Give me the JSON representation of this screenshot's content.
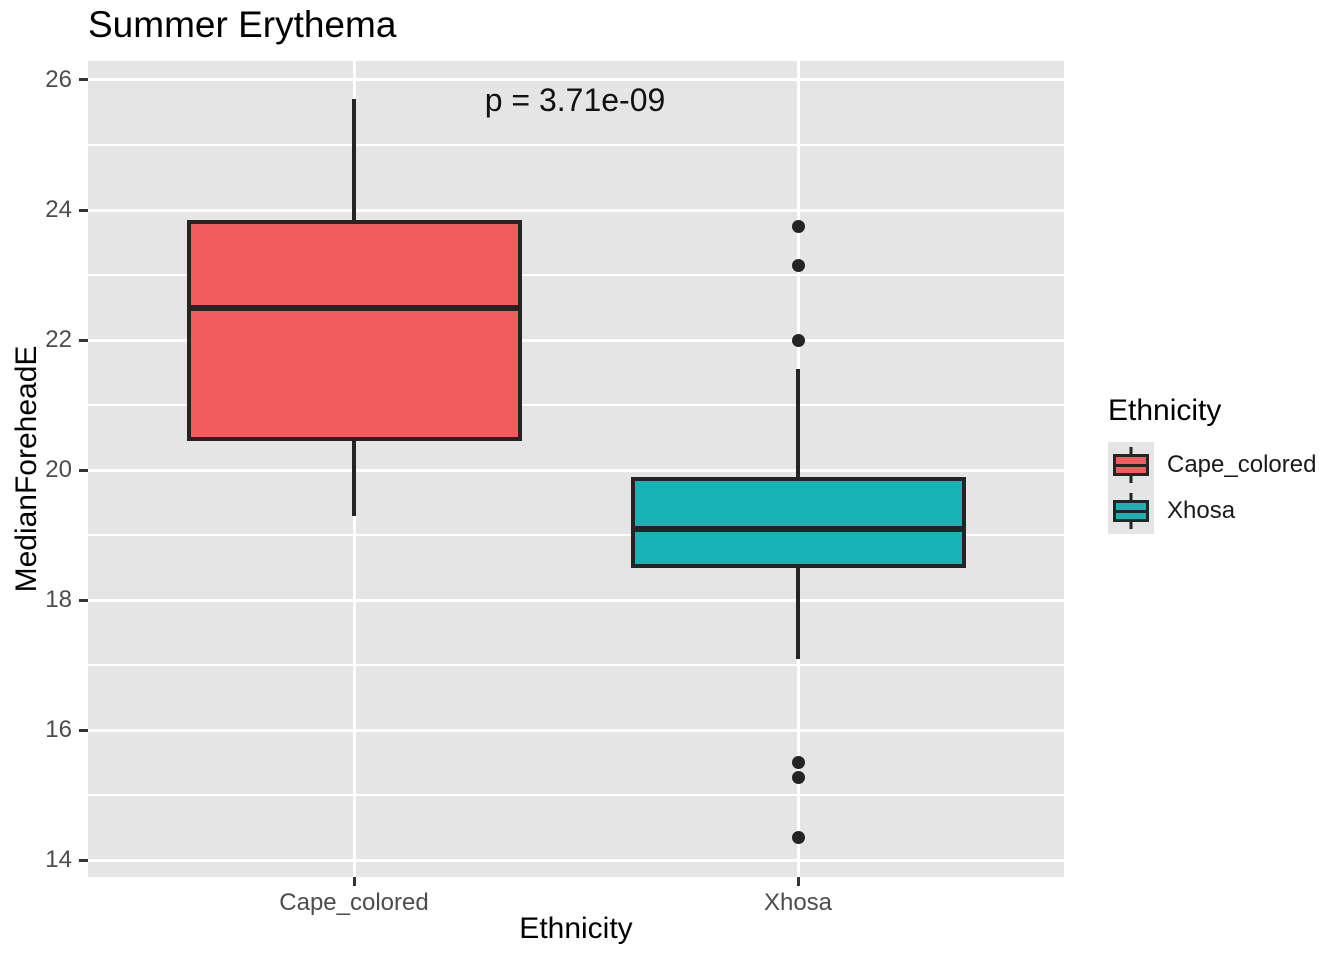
{
  "chart_data": {
    "type": "boxplot",
    "title": "Summer Erythema",
    "annotation": "p = 3.71e-09",
    "xlabel": "Ethnicity",
    "ylabel": "MedianForeheadE",
    "categories": [
      "Cape_colored",
      "Xhosa"
    ],
    "yticks": [
      14,
      16,
      18,
      20,
      22,
      24,
      26
    ],
    "yticks_minor": [
      15,
      17,
      19,
      21,
      23,
      25
    ],
    "ylim": [
      13.74,
      26.292
    ],
    "grid": true,
    "legend_title": "Ethnicity",
    "legend_position": "right",
    "series": [
      {
        "name": "Cape_colored",
        "color": "#F35C5C",
        "whisker_low": 19.3,
        "q1": 20.45,
        "median": 22.5,
        "q3": 23.85,
        "whisker_high": 25.7,
        "outliers": []
      },
      {
        "name": "Xhosa",
        "color": "#17B3B5",
        "whisker_low": 17.1,
        "q1": 18.5,
        "median": 19.1,
        "q3": 19.9,
        "whisker_high": 21.55,
        "outliers": [
          23.75,
          23.15,
          22.0,
          15.5,
          15.27,
          14.35
        ]
      }
    ],
    "style_colors": {
      "panel_background": "#E5E5E5",
      "gridline": "#FFFFFF",
      "box_stroke": "#242424",
      "tick_label": "#4D4D4D",
      "text": "#000000"
    }
  }
}
